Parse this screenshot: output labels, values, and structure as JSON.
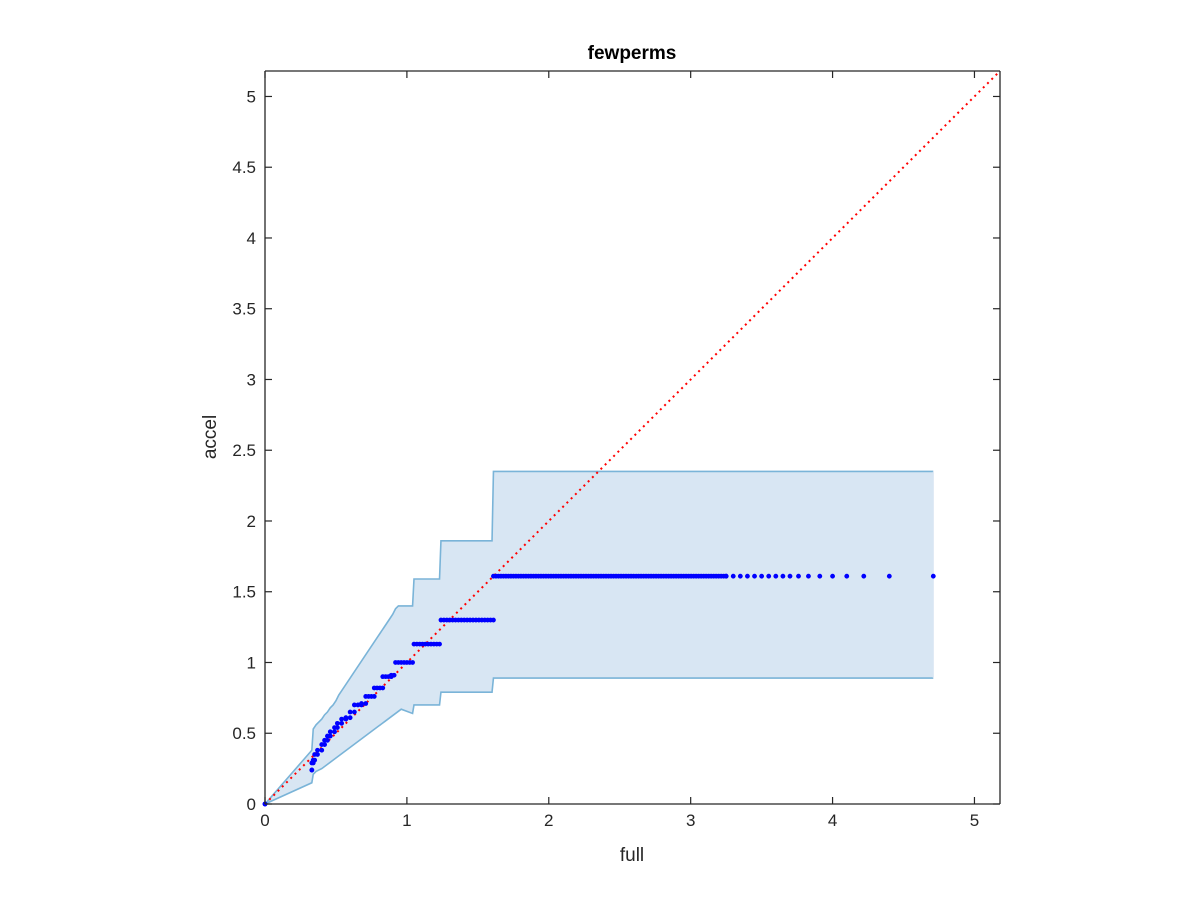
{
  "chart_data": {
    "type": "scatter",
    "title": "fewperms",
    "xlabel": "full",
    "ylabel": "accel",
    "xlim": [
      0,
      5.18
    ],
    "ylim": [
      0,
      5.18
    ],
    "xticks": [
      0,
      1,
      2,
      3,
      4,
      5
    ],
    "yticks": [
      0,
      0.5,
      1,
      1.5,
      2,
      2.5,
      3,
      3.5,
      4,
      4.5,
      5
    ],
    "xtick_labels": [
      "0",
      "1",
      "2",
      "3",
      "4",
      "5"
    ],
    "ytick_labels": [
      "0",
      "0.5",
      "1",
      "1.5",
      "2",
      "2.5",
      "3",
      "3.5",
      "4",
      "4.5",
      "5"
    ],
    "grid": false,
    "colors": {
      "points": "#0000ff",
      "band_fill": "#d8e6f3",
      "band_edge": "#7ab4d8",
      "reference_line": "#ff0000",
      "axes": "#262626"
    },
    "reference_line": {
      "name": "y = x",
      "style": "dotted",
      "x": [
        0,
        5.18
      ],
      "y": [
        0,
        5.18
      ]
    },
    "band_upper": {
      "x": [
        0,
        0.33,
        0.34,
        0.36,
        0.38,
        0.4,
        0.42,
        0.44,
        0.46,
        0.48,
        0.5,
        0.52,
        0.54,
        0.56,
        0.58,
        0.6,
        0.62,
        0.64,
        0.66,
        0.68,
        0.7,
        0.72,
        0.74,
        0.76,
        0.78,
        0.8,
        0.82,
        0.84,
        0.86,
        0.88,
        0.9,
        0.92,
        0.94,
        1.04,
        1.05,
        1.23,
        1.24,
        1.6,
        1.61,
        4.71
      ],
      "y": [
        0,
        0.38,
        0.53,
        0.56,
        0.58,
        0.6,
        0.63,
        0.65,
        0.68,
        0.7,
        0.73,
        0.77,
        0.8,
        0.83,
        0.86,
        0.89,
        0.92,
        0.95,
        0.98,
        1.01,
        1.04,
        1.07,
        1.1,
        1.13,
        1.16,
        1.19,
        1.22,
        1.25,
        1.28,
        1.31,
        1.34,
        1.38,
        1.4,
        1.4,
        1.59,
        1.59,
        1.86,
        1.86,
        2.35,
        2.35
      ]
    },
    "band_lower": {
      "x": [
        0,
        0.33,
        0.34,
        0.36,
        0.4,
        0.44,
        0.48,
        0.52,
        0.56,
        0.6,
        0.64,
        0.68,
        0.72,
        0.76,
        0.8,
        0.84,
        0.88,
        0.92,
        0.96,
        1.04,
        1.05,
        1.23,
        1.24,
        1.6,
        1.61,
        4.71
      ],
      "y": [
        0,
        0.15,
        0.21,
        0.23,
        0.25,
        0.28,
        0.31,
        0.34,
        0.37,
        0.4,
        0.43,
        0.46,
        0.49,
        0.52,
        0.55,
        0.58,
        0.61,
        0.64,
        0.67,
        0.64,
        0.7,
        0.7,
        0.79,
        0.79,
        0.89,
        0.89
      ]
    },
    "series": [
      {
        "segments": [
          {
            "x": [
              0.0,
              0.0
            ],
            "y": [
              0.0,
              0.0
            ]
          },
          {
            "x": [
              0.33,
              0.33
            ],
            "y": [
              0.24,
              0.24
            ]
          },
          {
            "x": [
              0.33,
              0.34
            ],
            "y": [
              0.29,
              0.29
            ]
          },
          {
            "x": [
              0.34,
              0.35
            ],
            "y": [
              0.31,
              0.31
            ]
          },
          {
            "x": [
              0.35,
              0.37
            ],
            "y": [
              0.35,
              0.35
            ]
          },
          {
            "x": [
              0.37,
              0.4
            ],
            "y": [
              0.38,
              0.38
            ]
          },
          {
            "x": [
              0.4,
              0.42
            ],
            "y": [
              0.42,
              0.42
            ]
          },
          {
            "x": [
              0.42,
              0.44
            ],
            "y": [
              0.45,
              0.45
            ]
          },
          {
            "x": [
              0.44,
              0.46
            ],
            "y": [
              0.48,
              0.48
            ]
          },
          {
            "x": [
              0.46,
              0.49
            ],
            "y": [
              0.51,
              0.51
            ]
          },
          {
            "x": [
              0.49,
              0.51
            ],
            "y": [
              0.54,
              0.54
            ]
          },
          {
            "x": [
              0.51,
              0.54
            ],
            "y": [
              0.57,
              0.57
            ]
          },
          {
            "x": [
              0.54,
              0.57
            ],
            "y": [
              0.6,
              0.6
            ]
          },
          {
            "x": [
              0.57,
              0.6
            ],
            "y": [
              0.61,
              0.61
            ]
          },
          {
            "x": [
              0.6,
              0.63
            ],
            "y": [
              0.65,
              0.65
            ]
          },
          {
            "x": [
              0.63,
              0.68
            ],
            "y": [
              0.7,
              0.7
            ]
          },
          {
            "x": [
              0.68,
              0.71
            ],
            "y": [
              0.71,
              0.71
            ]
          },
          {
            "x": [
              0.71,
              0.77
            ],
            "y": [
              0.76,
              0.76
            ]
          },
          {
            "x": [
              0.77,
              0.83
            ],
            "y": [
              0.82,
              0.82
            ]
          },
          {
            "x": [
              0.83,
              0.89
            ],
            "y": [
              0.9,
              0.9
            ]
          },
          {
            "x": [
              0.89,
              0.91
            ],
            "y": [
              0.91,
              0.91
            ]
          },
          {
            "x": [
              0.92,
              1.04
            ],
            "y": [
              1.0,
              1.0
            ]
          },
          {
            "x": [
              1.05,
              1.23
            ],
            "y": [
              1.13,
              1.13
            ]
          },
          {
            "x": [
              1.24,
              1.61
            ],
            "y": [
              1.3,
              1.3
            ]
          }
        ],
        "sparse_x": [
          3.25,
          3.3,
          3.35,
          3.4,
          3.45,
          3.5,
          3.55,
          3.6,
          3.65,
          3.7,
          3.76,
          3.83,
          3.91,
          4.0,
          4.1,
          4.22,
          4.4,
          4.71
        ],
        "sparse_y": 1.61,
        "dense_range": [
          1.61,
          3.25
        ]
      }
    ]
  }
}
